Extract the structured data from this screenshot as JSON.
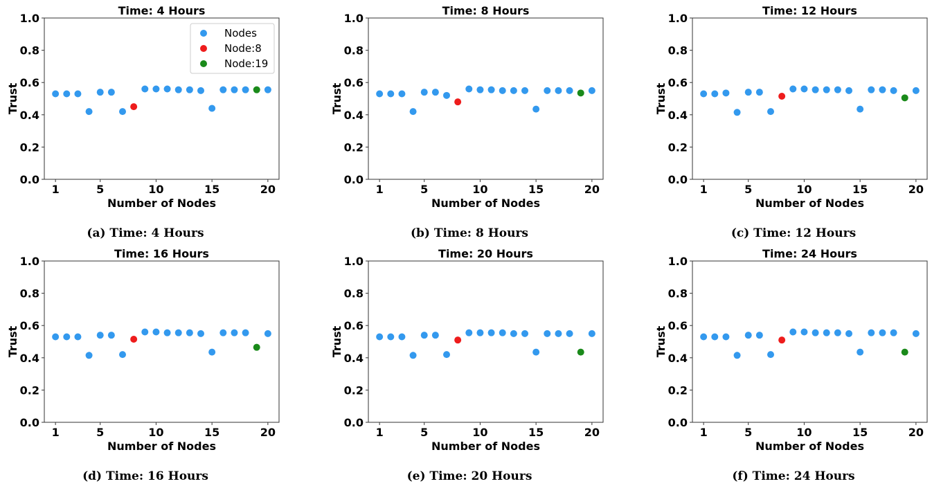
{
  "legend": {
    "position": "top-right",
    "items": [
      {
        "label": "Nodes",
        "color": "#3399ee"
      },
      {
        "label": "Node:8",
        "color": "#ee1c1c"
      },
      {
        "label": "Node:19",
        "color": "#1a8a1a"
      }
    ]
  },
  "chart_data": [
    {
      "type": "scatter",
      "title": "Time: 4 Hours",
      "caption": "(a) Time: 4 Hours",
      "xlabel": "Number of Nodes",
      "ylabel": "Trust",
      "xticks": [
        1,
        5,
        10,
        15,
        20
      ],
      "yticks": [
        "0.0",
        "0.2",
        "0.4",
        "0.6",
        "0.8",
        "1.0"
      ],
      "xlim": [
        0,
        21
      ],
      "ylim": [
        0,
        1
      ],
      "grid": false,
      "show_legend": true,
      "series": [
        {
          "name": "Nodes",
          "color": "#3399ee",
          "x": [
            1,
            2,
            3,
            4,
            5,
            6,
            7,
            9,
            10,
            11,
            12,
            13,
            14,
            15,
            16,
            17,
            18,
            20
          ],
          "y": [
            0.53,
            0.53,
            0.53,
            0.42,
            0.54,
            0.54,
            0.42,
            0.56,
            0.56,
            0.56,
            0.555,
            0.555,
            0.55,
            0.44,
            0.555,
            0.555,
            0.555,
            0.555
          ]
        },
        {
          "name": "Node:8",
          "color": "#ee1c1c",
          "x": [
            8
          ],
          "y": [
            0.45
          ]
        },
        {
          "name": "Node:19",
          "color": "#1a8a1a",
          "x": [
            19
          ],
          "y": [
            0.555
          ]
        }
      ]
    },
    {
      "type": "scatter",
      "title": "Time: 8 Hours",
      "caption": "(b) Time: 8 Hours",
      "xlabel": "Number of Nodes",
      "ylabel": "Trust",
      "xticks": [
        1,
        5,
        10,
        15,
        20
      ],
      "yticks": [
        "0.0",
        "0.2",
        "0.4",
        "0.6",
        "0.8",
        "1.0"
      ],
      "xlim": [
        0,
        21
      ],
      "ylim": [
        0,
        1
      ],
      "grid": false,
      "show_legend": false,
      "series": [
        {
          "name": "Nodes",
          "color": "#3399ee",
          "x": [
            1,
            2,
            3,
            4,
            5,
            6,
            7,
            9,
            10,
            11,
            12,
            13,
            14,
            15,
            16,
            17,
            18,
            20
          ],
          "y": [
            0.53,
            0.53,
            0.53,
            0.42,
            0.54,
            0.54,
            0.52,
            0.56,
            0.555,
            0.555,
            0.55,
            0.55,
            0.55,
            0.435,
            0.55,
            0.55,
            0.55,
            0.55
          ]
        },
        {
          "name": "Node:8",
          "color": "#ee1c1c",
          "x": [
            8
          ],
          "y": [
            0.48
          ]
        },
        {
          "name": "Node:19",
          "color": "#1a8a1a",
          "x": [
            19
          ],
          "y": [
            0.535
          ]
        }
      ]
    },
    {
      "type": "scatter",
      "title": "Time: 12 Hours",
      "caption": "(c) Time: 12 Hours",
      "xlabel": "Number of Nodes",
      "ylabel": "Trust",
      "xticks": [
        1,
        5,
        10,
        15,
        20
      ],
      "yticks": [
        "0.0",
        "0.2",
        "0.4",
        "0.6",
        "0.8",
        "1.0"
      ],
      "xlim": [
        0,
        21
      ],
      "ylim": [
        0,
        1
      ],
      "grid": false,
      "show_legend": false,
      "series": [
        {
          "name": "Nodes",
          "color": "#3399ee",
          "x": [
            1,
            2,
            3,
            4,
            5,
            6,
            7,
            9,
            10,
            11,
            12,
            13,
            14,
            15,
            16,
            17,
            18,
            20
          ],
          "y": [
            0.53,
            0.53,
            0.535,
            0.415,
            0.54,
            0.54,
            0.42,
            0.56,
            0.56,
            0.555,
            0.555,
            0.555,
            0.55,
            0.435,
            0.555,
            0.555,
            0.55,
            0.55
          ]
        },
        {
          "name": "Node:8",
          "color": "#ee1c1c",
          "x": [
            8
          ],
          "y": [
            0.515
          ]
        },
        {
          "name": "Node:19",
          "color": "#1a8a1a",
          "x": [
            19
          ],
          "y": [
            0.505
          ]
        }
      ]
    },
    {
      "type": "scatter",
      "title": "Time: 16 Hours",
      "caption": "(d) Time: 16 Hours",
      "xlabel": "Number of Nodes",
      "ylabel": "Trust",
      "xticks": [
        1,
        5,
        10,
        15,
        20
      ],
      "yticks": [
        "0.0",
        "0.2",
        "0.4",
        "0.6",
        "0.8",
        "1.0"
      ],
      "xlim": [
        0,
        21
      ],
      "ylim": [
        0,
        1
      ],
      "grid": false,
      "show_legend": false,
      "series": [
        {
          "name": "Nodes",
          "color": "#3399ee",
          "x": [
            1,
            2,
            3,
            4,
            5,
            6,
            7,
            9,
            10,
            11,
            12,
            13,
            14,
            15,
            16,
            17,
            18,
            20
          ],
          "y": [
            0.53,
            0.53,
            0.53,
            0.415,
            0.54,
            0.54,
            0.42,
            0.56,
            0.56,
            0.555,
            0.555,
            0.555,
            0.55,
            0.435,
            0.555,
            0.555,
            0.555,
            0.55
          ]
        },
        {
          "name": "Node:8",
          "color": "#ee1c1c",
          "x": [
            8
          ],
          "y": [
            0.515
          ]
        },
        {
          "name": "Node:19",
          "color": "#1a8a1a",
          "x": [
            19
          ],
          "y": [
            0.465
          ]
        }
      ]
    },
    {
      "type": "scatter",
      "title": "Time: 20 Hours",
      "caption": "(e) Time: 20 Hours",
      "xlabel": "Number of Nodes",
      "ylabel": "Trust",
      "xticks": [
        1,
        5,
        10,
        15,
        20
      ],
      "yticks": [
        "0.0",
        "0.2",
        "0.4",
        "0.6",
        "0.8",
        "1.0"
      ],
      "xlim": [
        0,
        21
      ],
      "ylim": [
        0,
        1
      ],
      "grid": false,
      "show_legend": false,
      "series": [
        {
          "name": "Nodes",
          "color": "#3399ee",
          "x": [
            1,
            2,
            3,
            4,
            5,
            6,
            7,
            9,
            10,
            11,
            12,
            13,
            14,
            15,
            16,
            17,
            18,
            20
          ],
          "y": [
            0.53,
            0.53,
            0.53,
            0.415,
            0.54,
            0.54,
            0.42,
            0.555,
            0.555,
            0.555,
            0.555,
            0.55,
            0.55,
            0.435,
            0.55,
            0.55,
            0.55,
            0.55
          ]
        },
        {
          "name": "Node:8",
          "color": "#ee1c1c",
          "x": [
            8
          ],
          "y": [
            0.51
          ]
        },
        {
          "name": "Node:19",
          "color": "#1a8a1a",
          "x": [
            19
          ],
          "y": [
            0.435
          ]
        }
      ]
    },
    {
      "type": "scatter",
      "title": "Time: 24 Hours",
      "caption": "(f) Time: 24 Hours",
      "xlabel": "Number of Nodes",
      "ylabel": "Trust",
      "xticks": [
        1,
        5,
        10,
        15,
        20
      ],
      "yticks": [
        "0.0",
        "0.2",
        "0.4",
        "0.6",
        "0.8",
        "1.0"
      ],
      "xlim": [
        0,
        21
      ],
      "ylim": [
        0,
        1
      ],
      "grid": false,
      "show_legend": false,
      "series": [
        {
          "name": "Nodes",
          "color": "#3399ee",
          "x": [
            1,
            2,
            3,
            4,
            5,
            6,
            7,
            9,
            10,
            11,
            12,
            13,
            14,
            15,
            16,
            17,
            18,
            20
          ],
          "y": [
            0.53,
            0.53,
            0.53,
            0.415,
            0.54,
            0.54,
            0.42,
            0.56,
            0.56,
            0.555,
            0.555,
            0.555,
            0.55,
            0.435,
            0.555,
            0.555,
            0.555,
            0.55
          ]
        },
        {
          "name": "Node:8",
          "color": "#ee1c1c",
          "x": [
            8
          ],
          "y": [
            0.51
          ]
        },
        {
          "name": "Node:19",
          "color": "#1a8a1a",
          "x": [
            19
          ],
          "y": [
            0.435
          ]
        }
      ]
    }
  ]
}
